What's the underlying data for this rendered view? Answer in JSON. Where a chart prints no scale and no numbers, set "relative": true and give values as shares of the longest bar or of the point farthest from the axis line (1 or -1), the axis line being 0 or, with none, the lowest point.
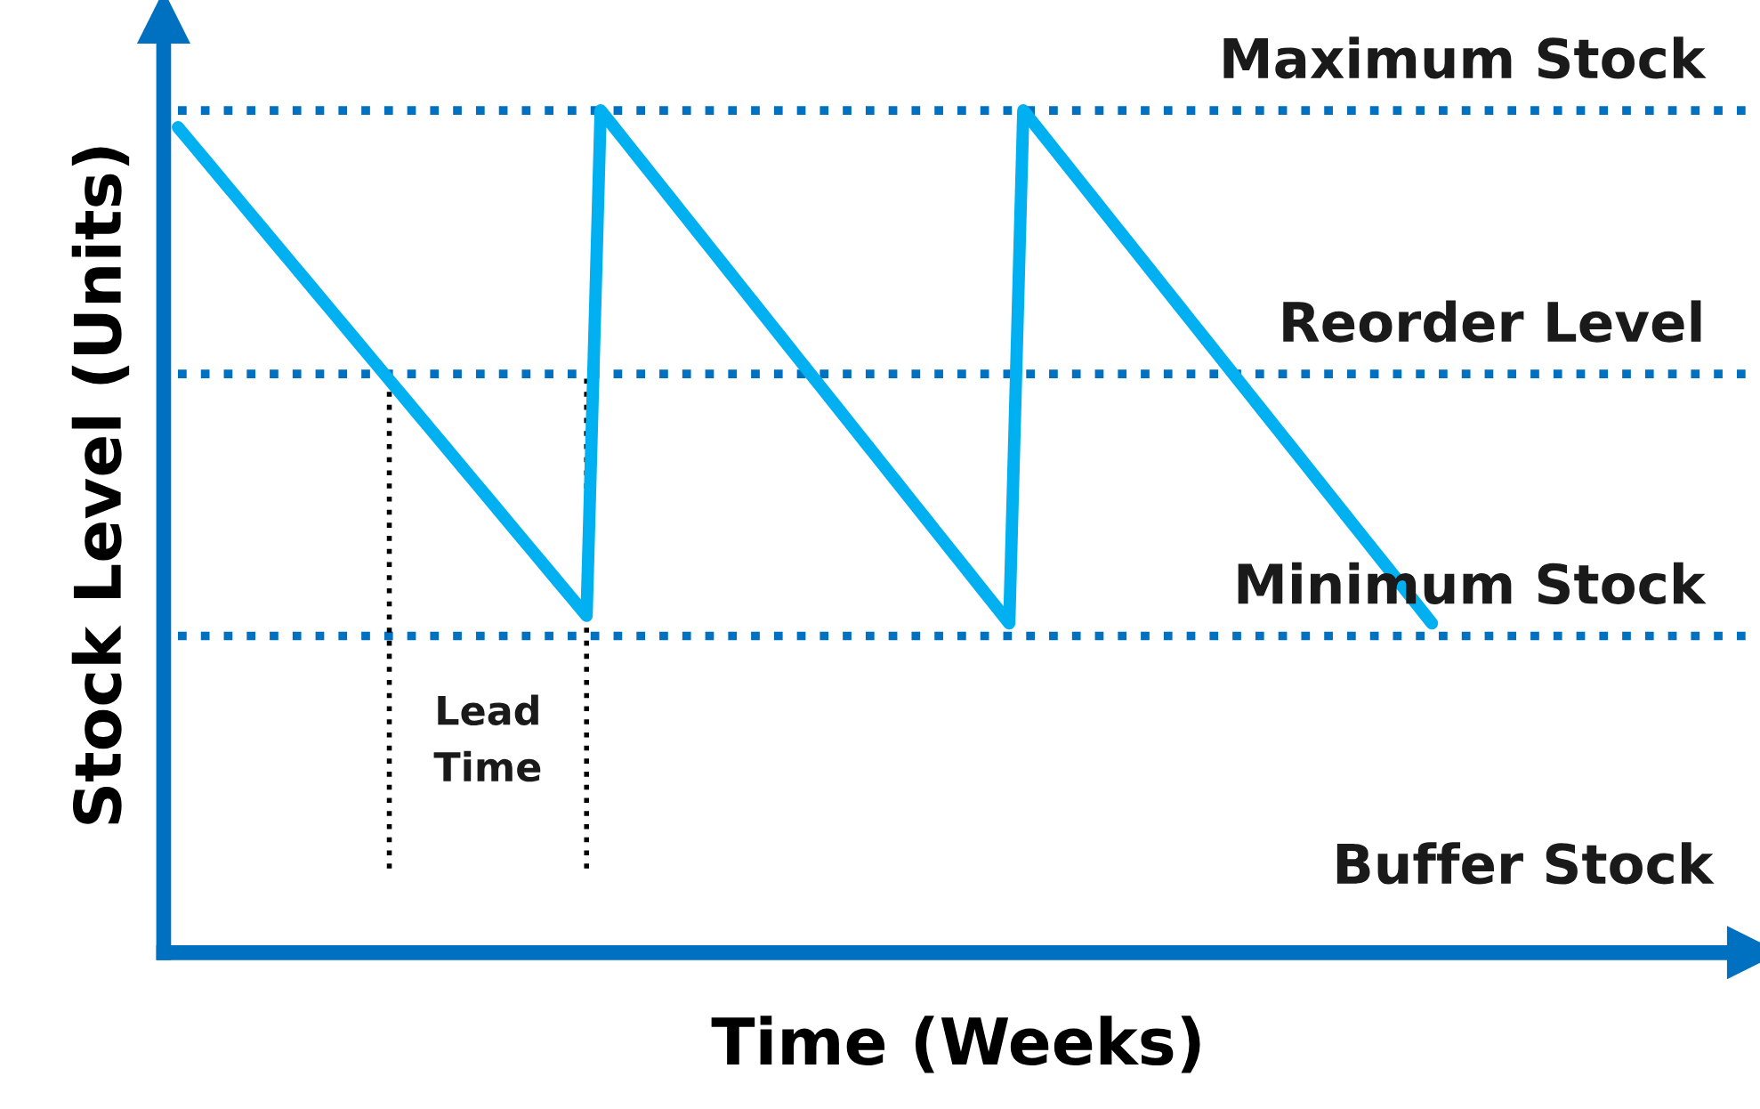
{
  "chart_data": {
    "type": "line",
    "relative": true,
    "xlabel": "Time (Weeks)",
    "ylabel": "Stock Level (Units)",
    "categories": [
      null,
      null,
      null,
      null,
      null,
      null,
      null,
      null,
      null,
      null,
      null,
      null,
      null,
      null,
      null,
      null,
      null,
      null,
      null,
      null,
      null,
      null,
      null,
      null,
      null,
      null,
      null,
      null,
      null,
      null,
      null,
      null,
      null,
      null,
      null,
      null,
      null,
      null,
      null,
      null,
      null,
      null,
      null,
      null,
      null,
      null,
      null,
      null,
      null,
      null,
      null,
      null,
      null,
      null,
      null,
      null,
      null,
      null,
      null,
      null,
      null,
      null,
      null,
      null,
      null,
      null,
      null,
      null,
      null,
      null,
      null,
      null,
      null,
      null,
      null,
      null,
      null,
      null,
      null,
      null,
      null,
      null,
      null,
      null,
      null,
      null,
      null,
      null,
      null,
      null
    ],
    "series": [
      {
        "color": "#00b0f0",
        "values": [
          0.98,
          0.96,
          0.94,
          0.92,
          0.9,
          0.88,
          0.86,
          0.84,
          0.82,
          0.8,
          0.78,
          0.76,
          0.74,
          0.72,
          0.7,
          0.68,
          0.66,
          0.64,
          0.62,
          0.6,
          0.58,
          0.56,
          0.54,
          0.52,
          0.5,
          0.48,
          0.46,
          0.44,
          0.42,
          0.4,
          1.0,
          0.979,
          0.958,
          0.937,
          0.916,
          0.895,
          0.874,
          0.853,
          0.832,
          0.811,
          0.79,
          0.769,
          0.748,
          0.727,
          0.706,
          0.685,
          0.664,
          0.643,
          0.622,
          0.601,
          0.58,
          0.559,
          0.538,
          0.517,
          0.496,
          0.475,
          0.454,
          0.433,
          0.412,
          0.391,
          1.0,
          0.979,
          0.958,
          0.937,
          0.916,
          0.895,
          0.874,
          0.853,
          0.832,
          0.811,
          0.79,
          0.769,
          0.748,
          0.727,
          0.706,
          0.685,
          0.664,
          0.643,
          0.622,
          0.601,
          0.58,
          0.559,
          0.538,
          0.517,
          0.496,
          0.475,
          0.454,
          0.433,
          0.412,
          0.391
        ]
      }
    ],
    "ref_lines": [
      {
        "axis": "y",
        "value": 1,
        "label": "Maximum Stock",
        "color": "#0070c0",
        "line_style": "dotted"
      },
      {
        "axis": "y",
        "value": 0.687,
        "label": "Reorder Level",
        "color": "#0070c0",
        "line_style": "dotted"
      },
      {
        "axis": "y",
        "value": 0.376,
        "label": "Minimum Stock",
        "color": "#0070c0",
        "line_style": "dotted"
      }
    ],
    "annotations": [
      "Lead Time",
      "Buffer Stock"
    ],
    "legend": false
  }
}
